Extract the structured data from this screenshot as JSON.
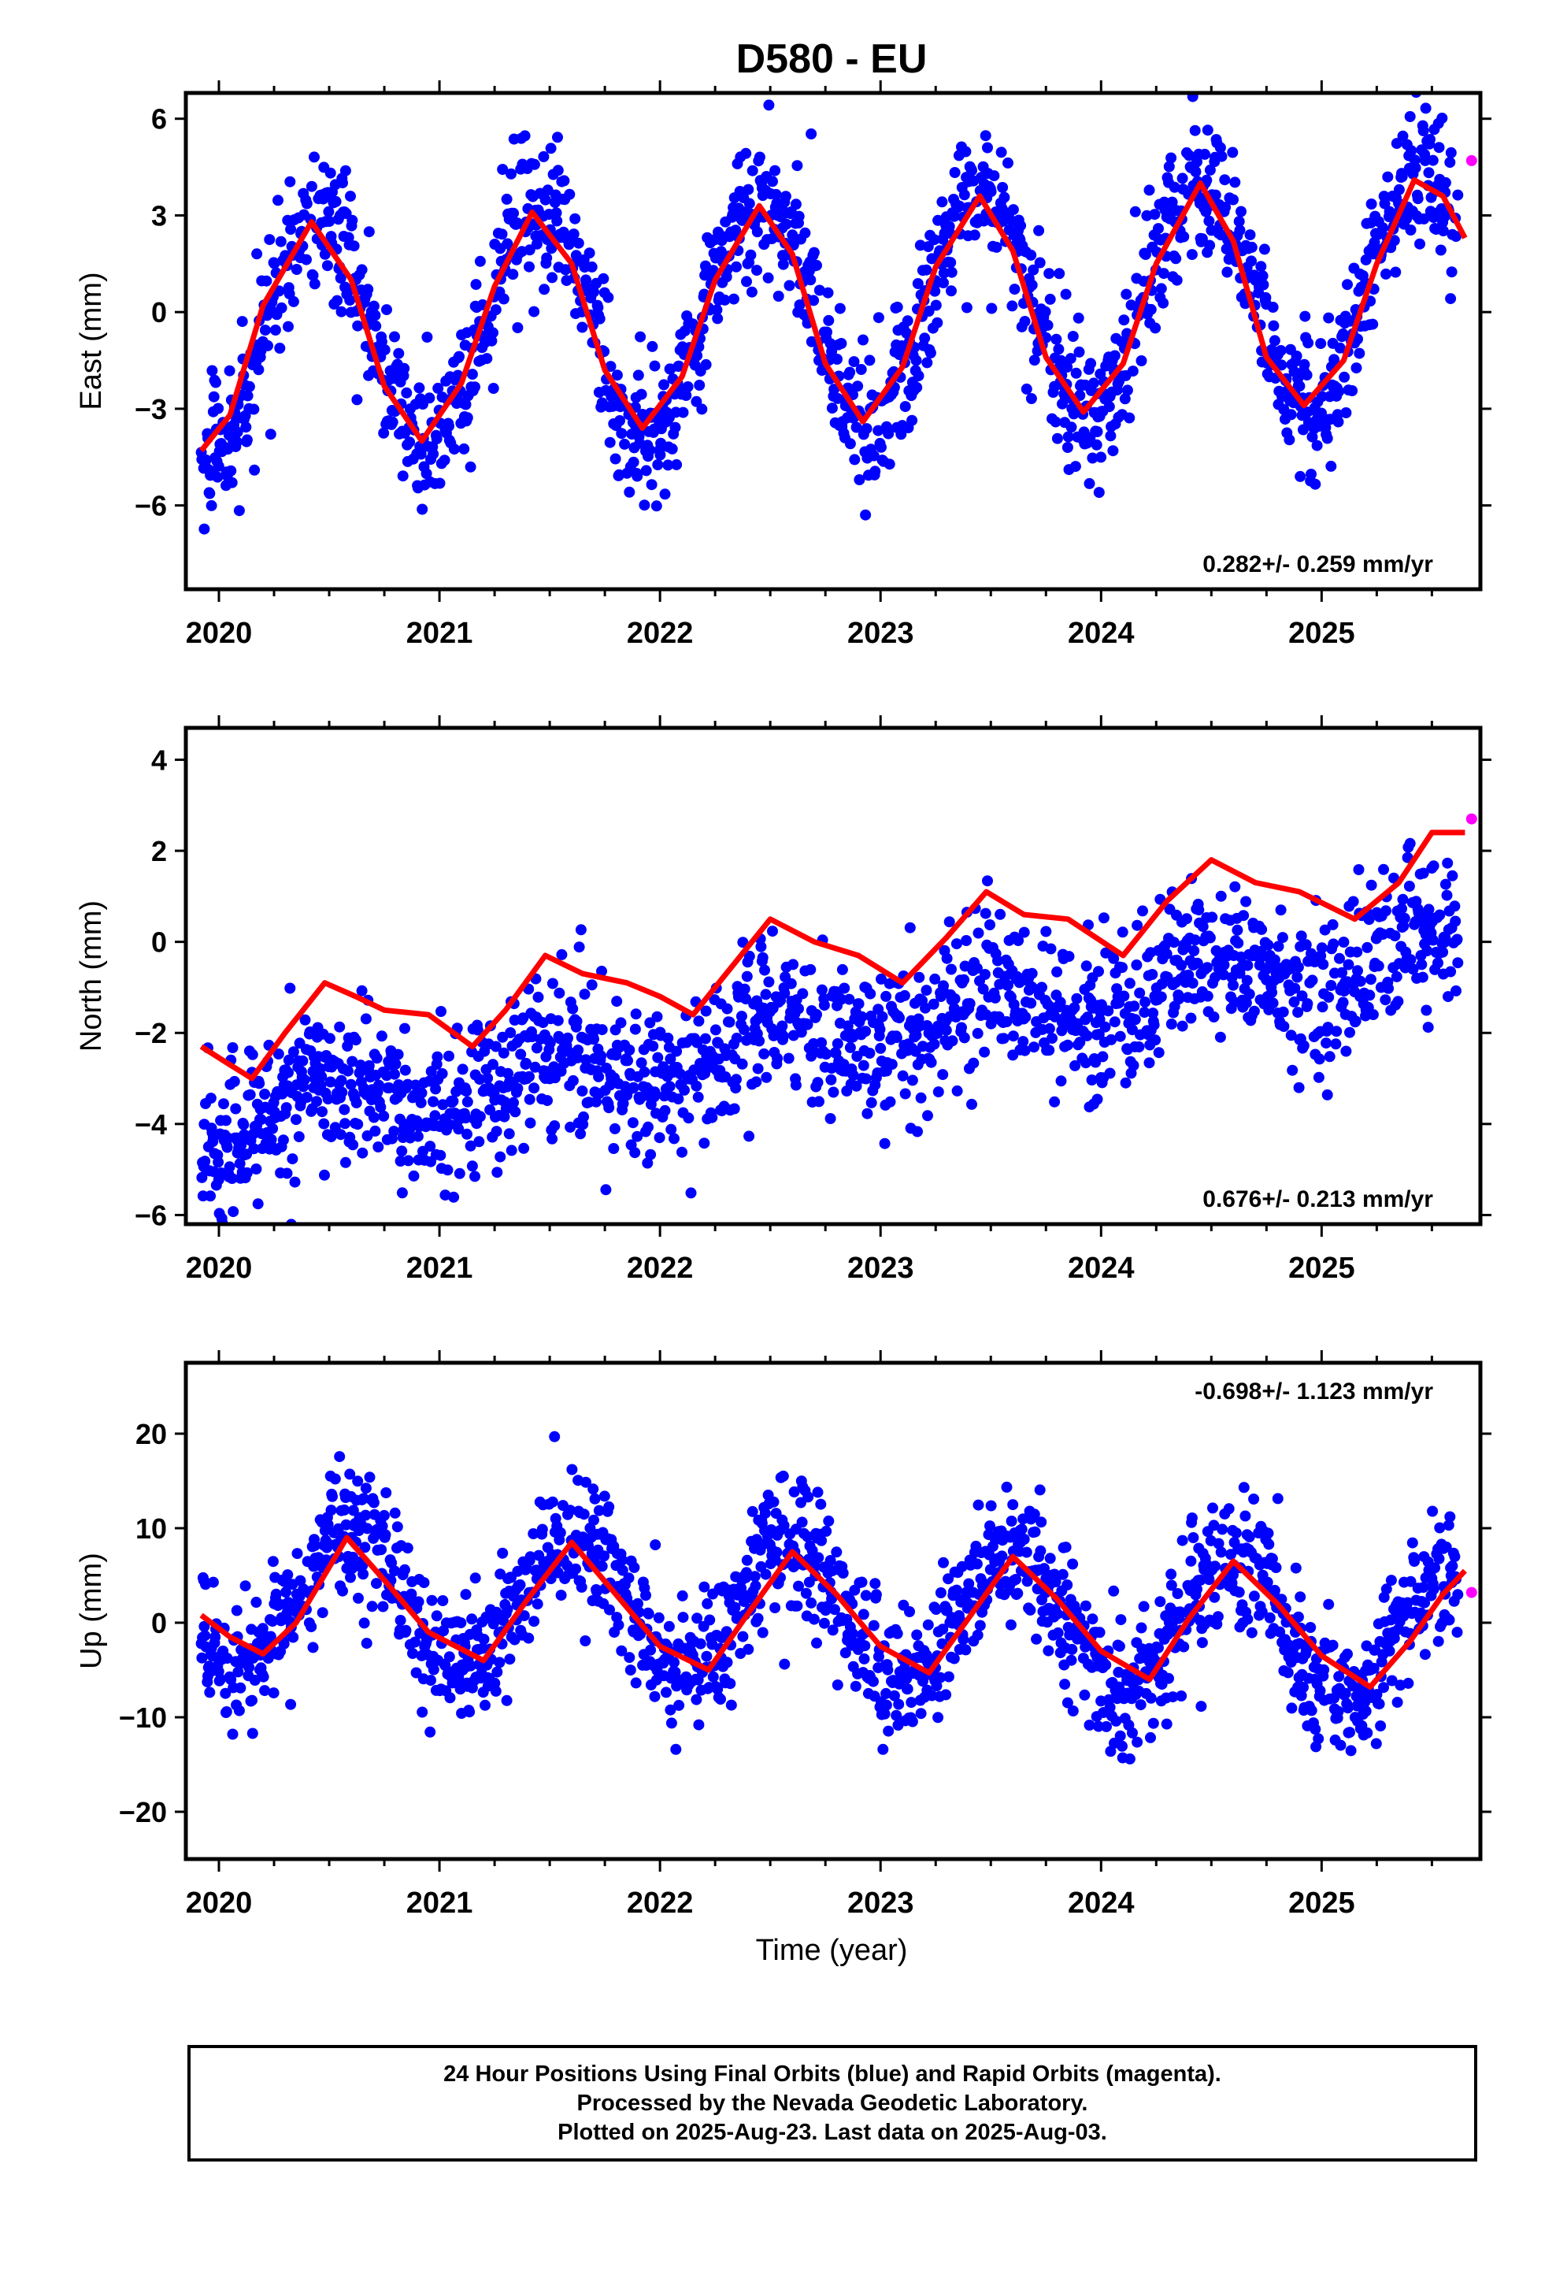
{
  "title": "D580 - EU",
  "colors": {
    "final_orbits": "#0000ff",
    "rapid_orbits": "#ff00ff",
    "model_fit": "#ff0000",
    "frame": "#000000"
  },
  "x_axis_label": "Time (year)",
  "chart_data": [
    {
      "type": "scatter",
      "component": "East",
      "ylabel": "East (mm)",
      "rate_label": "0.282+/- 0.259 mm/yr",
      "xlim": [
        2019.85,
        2025.72
      ],
      "ylim": [
        -8.6,
        6.8
      ],
      "yticks": [
        -6,
        -3,
        0,
        3,
        6
      ],
      "xticks": [
        2020,
        2021,
        2022,
        2023,
        2024,
        2025
      ],
      "grid": false,
      "final_orbits": {
        "mean_offset": 0.0,
        "annual_amplitude": 3.6,
        "annual_peak": 0.45,
        "trend": 0.282,
        "scatter": 1.1
      },
      "rapid_orbits": [
        {
          "x": 2025.68,
          "y": 4.7
        }
      ],
      "model_fit": [
        {
          "x": 2019.92,
          "y": -4.3
        },
        {
          "x": 2020.05,
          "y": -3.2
        },
        {
          "x": 2020.2,
          "y": 0.2
        },
        {
          "x": 2020.42,
          "y": 2.8
        },
        {
          "x": 2020.6,
          "y": 1.0
        },
        {
          "x": 2020.75,
          "y": -2.3
        },
        {
          "x": 2020.92,
          "y": -4.0
        },
        {
          "x": 2021.1,
          "y": -2.2
        },
        {
          "x": 2021.25,
          "y": 0.8
        },
        {
          "x": 2021.42,
          "y": 3.1
        },
        {
          "x": 2021.6,
          "y": 1.5
        },
        {
          "x": 2021.75,
          "y": -1.8
        },
        {
          "x": 2021.92,
          "y": -3.6
        },
        {
          "x": 2022.1,
          "y": -2.0
        },
        {
          "x": 2022.25,
          "y": 1.0
        },
        {
          "x": 2022.45,
          "y": 3.3
        },
        {
          "x": 2022.6,
          "y": 1.8
        },
        {
          "x": 2022.75,
          "y": -1.6
        },
        {
          "x": 2022.92,
          "y": -3.4
        },
        {
          "x": 2023.1,
          "y": -1.7
        },
        {
          "x": 2023.25,
          "y": 1.4
        },
        {
          "x": 2023.45,
          "y": 3.6
        },
        {
          "x": 2023.6,
          "y": 1.9
        },
        {
          "x": 2023.75,
          "y": -1.4
        },
        {
          "x": 2023.92,
          "y": -3.1
        },
        {
          "x": 2024.1,
          "y": -1.6
        },
        {
          "x": 2024.25,
          "y": 1.5
        },
        {
          "x": 2024.45,
          "y": 4.0
        },
        {
          "x": 2024.6,
          "y": 2.2
        },
        {
          "x": 2024.75,
          "y": -1.4
        },
        {
          "x": 2024.92,
          "y": -2.9
        },
        {
          "x": 2025.1,
          "y": -1.5
        },
        {
          "x": 2025.25,
          "y": 1.5
        },
        {
          "x": 2025.42,
          "y": 4.1
        },
        {
          "x": 2025.55,
          "y": 3.6
        },
        {
          "x": 2025.65,
          "y": 2.3
        }
      ]
    },
    {
      "type": "scatter",
      "component": "North",
      "ylabel": "North (mm)",
      "rate_label": "0.676+/- 0.213 mm/yr",
      "xlim": [
        2019.85,
        2025.72
      ],
      "ylim": [
        -6.2,
        4.7
      ],
      "yticks": [
        -6,
        -4,
        -2,
        0,
        2,
        4
      ],
      "xticks": [
        2020,
        2021,
        2022,
        2023,
        2024,
        2025
      ],
      "grid": false,
      "final_orbits": {
        "mean_offset": -2.0,
        "annual_amplitude": 0.6,
        "annual_peak": 0.5,
        "trend": 0.676,
        "scatter": 0.85
      },
      "rapid_orbits": [
        {
          "x": 2025.68,
          "y": 2.7
        }
      ],
      "model_fit": [
        {
          "x": 2019.92,
          "y": -2.3
        },
        {
          "x": 2020.05,
          "y": -2.7
        },
        {
          "x": 2020.15,
          "y": -3.0
        },
        {
          "x": 2020.3,
          "y": -2.0
        },
        {
          "x": 2020.48,
          "y": -0.9
        },
        {
          "x": 2020.62,
          "y": -1.2
        },
        {
          "x": 2020.75,
          "y": -1.5
        },
        {
          "x": 2020.95,
          "y": -1.6
        },
        {
          "x": 2021.15,
          "y": -2.3
        },
        {
          "x": 2021.3,
          "y": -1.5
        },
        {
          "x": 2021.48,
          "y": -0.3
        },
        {
          "x": 2021.65,
          "y": -0.7
        },
        {
          "x": 2021.85,
          "y": -0.9
        },
        {
          "x": 2022.0,
          "y": -1.2
        },
        {
          "x": 2022.15,
          "y": -1.6
        },
        {
          "x": 2022.3,
          "y": -0.7
        },
        {
          "x": 2022.5,
          "y": 0.5
        },
        {
          "x": 2022.7,
          "y": 0.0
        },
        {
          "x": 2022.9,
          "y": -0.3
        },
        {
          "x": 2023.1,
          "y": -0.9
        },
        {
          "x": 2023.3,
          "y": 0.1
        },
        {
          "x": 2023.48,
          "y": 1.1
        },
        {
          "x": 2023.65,
          "y": 0.6
        },
        {
          "x": 2023.85,
          "y": 0.5
        },
        {
          "x": 2024.1,
          "y": -0.3
        },
        {
          "x": 2024.3,
          "y": 0.9
        },
        {
          "x": 2024.5,
          "y": 1.8
        },
        {
          "x": 2024.7,
          "y": 1.3
        },
        {
          "x": 2024.9,
          "y": 1.1
        },
        {
          "x": 2025.15,
          "y": 0.5
        },
        {
          "x": 2025.35,
          "y": 1.3
        },
        {
          "x": 2025.5,
          "y": 2.4
        },
        {
          "x": 2025.65,
          "y": 2.4
        }
      ]
    },
    {
      "type": "scatter",
      "component": "Up",
      "ylabel": "Up (mm)",
      "rate_label": "-0.698+/- 1.123 mm/yr",
      "xlim": [
        2019.85,
        2025.72
      ],
      "ylim": [
        -25,
        27.5
      ],
      "yticks": [
        -20,
        -10,
        0,
        10,
        20
      ],
      "xticks": [
        2020,
        2021,
        2022,
        2023,
        2024,
        2025
      ],
      "grid": false,
      "final_orbits": {
        "mean_offset": 1.0,
        "annual_amplitude": 7.0,
        "annual_peak": 0.6,
        "trend": -0.698,
        "scatter": 3.6
      },
      "rapid_orbits": [
        {
          "x": 2025.68,
          "y": 3.2
        }
      ],
      "model_fit": [
        {
          "x": 2019.92,
          "y": 0.8
        },
        {
          "x": 2020.05,
          "y": -1.5
        },
        {
          "x": 2020.2,
          "y": -3.3
        },
        {
          "x": 2020.35,
          "y": 0.0
        },
        {
          "x": 2020.58,
          "y": 9.0
        },
        {
          "x": 2020.75,
          "y": 4.5
        },
        {
          "x": 2020.95,
          "y": -1.0
        },
        {
          "x": 2021.2,
          "y": -4.0
        },
        {
          "x": 2021.4,
          "y": 2.5
        },
        {
          "x": 2021.6,
          "y": 8.5
        },
        {
          "x": 2021.8,
          "y": 3.0
        },
        {
          "x": 2022.0,
          "y": -2.5
        },
        {
          "x": 2022.22,
          "y": -5.0
        },
        {
          "x": 2022.4,
          "y": 1.0
        },
        {
          "x": 2022.6,
          "y": 7.5
        },
        {
          "x": 2022.8,
          "y": 3.0
        },
        {
          "x": 2023.0,
          "y": -2.5
        },
        {
          "x": 2023.22,
          "y": -5.3
        },
        {
          "x": 2023.4,
          "y": 0.5
        },
        {
          "x": 2023.6,
          "y": 7.0
        },
        {
          "x": 2023.8,
          "y": 2.5
        },
        {
          "x": 2024.0,
          "y": -3.0
        },
        {
          "x": 2024.22,
          "y": -6.0
        },
        {
          "x": 2024.4,
          "y": 0.5
        },
        {
          "x": 2024.6,
          "y": 6.5
        },
        {
          "x": 2024.8,
          "y": 2.0
        },
        {
          "x": 2025.0,
          "y": -3.5
        },
        {
          "x": 2025.22,
          "y": -6.8
        },
        {
          "x": 2025.4,
          "y": -2.0
        },
        {
          "x": 2025.55,
          "y": 3.0
        },
        {
          "x": 2025.65,
          "y": 5.5
        }
      ]
    }
  ],
  "footer": {
    "line1": "24 Hour Positions Using Final Orbits (blue) and Rapid Orbits (magenta).",
    "line2": "Processed by the Nevada Geodetic Laboratory.",
    "line3": "Plotted on 2025-Aug-23. Last data on 2025-Aug-03."
  }
}
